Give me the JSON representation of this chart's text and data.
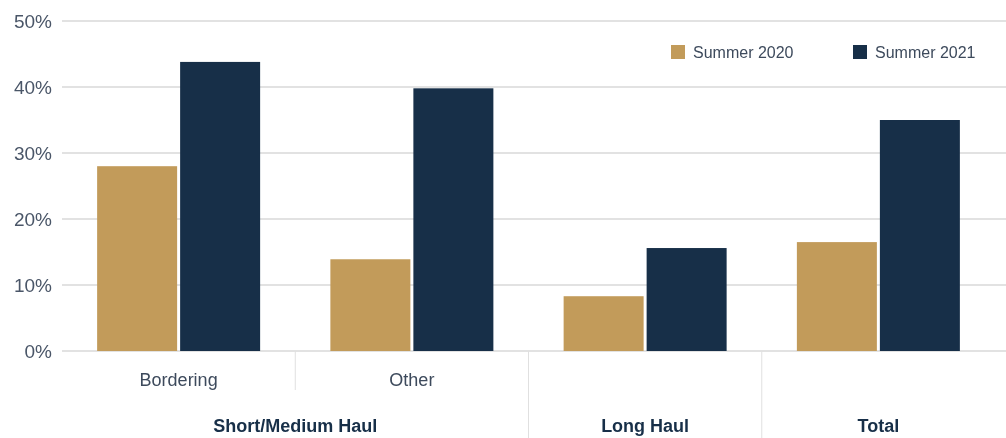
{
  "chart_data": {
    "type": "bar",
    "categories": [
      "Bordering",
      "Other",
      null,
      null
    ],
    "series": [
      {
        "name": "Summer 2020",
        "color": "#c29b5a",
        "values": [
          28.0,
          13.9,
          8.3,
          16.5
        ]
      },
      {
        "name": "Summer 2021",
        "color": "#172f48",
        "values": [
          43.8,
          39.8,
          15.6,
          35.0
        ]
      }
    ],
    "ylim": [
      0,
      50
    ],
    "yticks": [
      {
        "value": 0,
        "label": "0%"
      },
      {
        "value": 10,
        "label": "10%"
      },
      {
        "value": 20,
        "label": "20%"
      },
      {
        "value": 30,
        "label": "30%"
      },
      {
        "value": 40,
        "label": "40%"
      },
      {
        "value": 50,
        "label": "50%"
      }
    ],
    "grid": "y",
    "legend": "top right",
    "annotations": [
      "Short/Medium Haul",
      "Long Haul",
      "Total"
    ]
  }
}
